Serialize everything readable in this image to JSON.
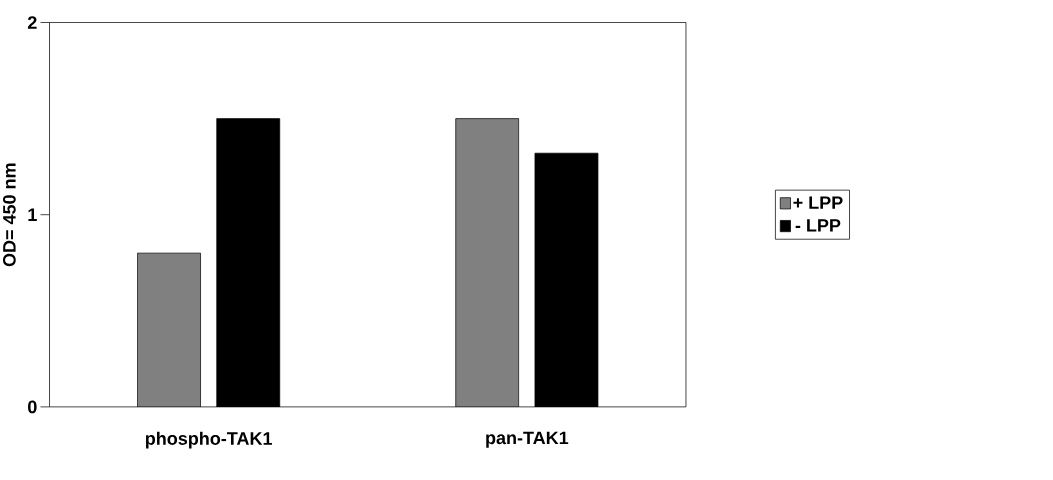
{
  "chart_data": {
    "type": "bar",
    "ylabel": "OD= 450 nm",
    "categories": [
      "phospho-TAK1",
      "pan-TAK1"
    ],
    "series": [
      {
        "name": "+ LPP",
        "color": "#808080",
        "values": [
          0.8,
          1.5
        ]
      },
      {
        "name": "- LPP",
        "color": "#000000",
        "values": [
          1.5,
          1.32
        ]
      }
    ],
    "ylim": [
      0,
      2
    ],
    "yticks": [
      0,
      1,
      2
    ],
    "legend": "right"
  }
}
